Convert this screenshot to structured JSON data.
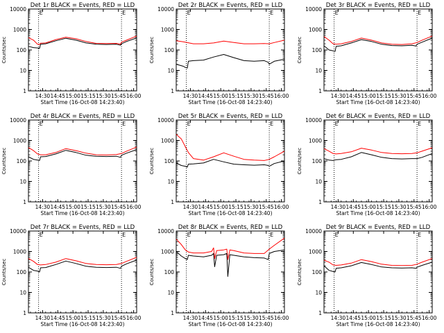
{
  "layout": {
    "rows": 3,
    "cols": 3
  },
  "colors": {
    "events": "#000000",
    "lld": "#ff0000",
    "axis": "#000000",
    "background": "#ffffff"
  },
  "chart_data": [
    {
      "type": "line",
      "title": "Det 1r BLACK = Events, RED = LLD",
      "xlabel": "Start Time (16-Oct-08 14:23:40)",
      "ylabel": "Counts/sec",
      "yscale": "log",
      "ylim": [
        1,
        10000
      ],
      "xlim_min": [
        -7,
        100
      ],
      "y_ticks": [
        1,
        10,
        100,
        1000,
        10000
      ],
      "y_tick_labels": [
        "1",
        "10",
        "100",
        "1000",
        "10000"
      ],
      "x_ticks": [
        7,
        22,
        37,
        52,
        67,
        82,
        97
      ],
      "x_tick_labels": [
        "14:30",
        "14:45",
        "15:00",
        "15:15",
        "15:30",
        "15:45",
        "16:00"
      ],
      "vlines": [
        3,
        85
      ],
      "marker": "E",
      "series": [
        {
          "x": [
            -7,
            -2,
            2,
            4,
            5,
            10,
            20,
            30,
            40,
            50,
            60,
            70,
            80,
            84,
            85,
            90,
            100
          ],
          "y": [
            400,
            300,
            190,
            185,
            215,
            220,
            320,
            420,
            350,
            260,
            210,
            205,
            210,
            190,
            240,
            300,
            480
          ],
          "color": "#ff0000"
        },
        {
          "x": [
            -7,
            -2,
            2,
            4,
            5,
            10,
            20,
            30,
            40,
            50,
            60,
            70,
            80,
            84,
            85,
            90,
            100
          ],
          "y": [
            150,
            130,
            125,
            120,
            190,
            200,
            280,
            370,
            300,
            220,
            190,
            185,
            190,
            170,
            200,
            260,
            390
          ],
          "color": "#000000"
        }
      ]
    },
    {
      "type": "line",
      "title": "Det 2r BLACK = Events, RED = LLD",
      "xlabel": "Start Time (16-Oct-08 14:23:40)",
      "ylabel": "Counts/sec",
      "yscale": "log",
      "ylim": [
        1,
        10000
      ],
      "xlim_min": [
        -7,
        100
      ],
      "y_ticks": [
        1,
        10,
        100,
        1000,
        10000
      ],
      "y_tick_labels": [
        "1",
        "10",
        "100",
        "1000",
        "10000"
      ],
      "x_ticks": [
        7,
        22,
        37,
        52,
        67,
        82,
        97
      ],
      "x_tick_labels": [
        "14:30",
        "14:45",
        "15:00",
        "15:15",
        "15:30",
        "15:45",
        "16:00"
      ],
      "vlines": [
        3,
        85
      ],
      "marker": "E",
      "series": [
        {
          "x": [
            -7,
            0,
            10,
            20,
            30,
            40,
            50,
            60,
            70,
            80,
            85,
            90,
            100
          ],
          "y": [
            280,
            250,
            200,
            200,
            220,
            270,
            230,
            200,
            200,
            205,
            200,
            230,
            300
          ],
          "color": "#ff0000"
        },
        {
          "x": [
            -7,
            0,
            2,
            4,
            5,
            10,
            20,
            30,
            40,
            50,
            60,
            70,
            80,
            84,
            85,
            90,
            100
          ],
          "y": [
            20,
            16,
            14,
            13,
            28,
            30,
            32,
            45,
            60,
            42,
            30,
            28,
            30,
            25,
            20,
            28,
            35
          ],
          "color": "#000000"
        }
      ]
    },
    {
      "type": "line",
      "title": "Det 3r BLACK = Events, RED = LLD",
      "xlabel": "Start Time (16-Oct-08 14:23:40)",
      "ylabel": "Counts/sec",
      "yscale": "log",
      "ylim": [
        1,
        10000
      ],
      "xlim_min": [
        -7,
        100
      ],
      "y_ticks": [
        1,
        10,
        100,
        1000,
        10000
      ],
      "y_tick_labels": [
        "1",
        "10",
        "100",
        "1000",
        "10000"
      ],
      "x_ticks": [
        7,
        22,
        37,
        52,
        67,
        82,
        97
      ],
      "x_tick_labels": [
        "14:30",
        "14:45",
        "15:00",
        "15:15",
        "15:30",
        "15:45",
        "16:00"
      ],
      "vlines": [
        3,
        85
      ],
      "marker": "E",
      "series": [
        {
          "x": [
            -7,
            -2,
            2,
            5,
            10,
            20,
            30,
            40,
            50,
            60,
            70,
            80,
            85,
            90,
            100
          ],
          "y": [
            450,
            300,
            200,
            190,
            200,
            260,
            380,
            300,
            220,
            190,
            185,
            200,
            230,
            300,
            480
          ],
          "color": "#ff0000"
        },
        {
          "x": [
            -7,
            -2,
            2,
            4,
            5,
            10,
            20,
            30,
            40,
            50,
            60,
            70,
            80,
            84,
            85,
            90,
            100
          ],
          "y": [
            160,
            100,
            90,
            85,
            150,
            160,
            220,
            320,
            260,
            190,
            165,
            160,
            170,
            155,
            190,
            240,
            380
          ],
          "color": "#000000"
        }
      ]
    },
    {
      "type": "line",
      "title": "Det 4r BLACK = Events, RED = LLD",
      "xlabel": "Start Time (16-Oct-08 14:23:40)",
      "ylabel": "Counts/sec",
      "yscale": "log",
      "ylim": [
        1,
        10000
      ],
      "xlim_min": [
        -7,
        100
      ],
      "y_ticks": [
        1,
        10,
        100,
        1000,
        10000
      ],
      "y_tick_labels": [
        "1",
        "10",
        "100",
        "1000",
        "10000"
      ],
      "x_ticks": [
        7,
        22,
        37,
        52,
        67,
        82,
        97
      ],
      "x_tick_labels": [
        "14:30",
        "14:45",
        "15:00",
        "15:15",
        "15:30",
        "15:45",
        "16:00"
      ],
      "vlines": [
        3,
        85
      ],
      "marker": "E",
      "series": [
        {
          "x": [
            -7,
            -2,
            2,
            5,
            10,
            20,
            30,
            40,
            50,
            60,
            70,
            80,
            85,
            90,
            100
          ],
          "y": [
            450,
            320,
            220,
            200,
            200,
            260,
            400,
            320,
            240,
            200,
            195,
            205,
            230,
            300,
            480
          ],
          "color": "#ff0000"
        },
        {
          "x": [
            -7,
            -2,
            2,
            4,
            5,
            10,
            20,
            30,
            40,
            50,
            60,
            70,
            80,
            84,
            85,
            90,
            100
          ],
          "y": [
            160,
            120,
            110,
            105,
            160,
            165,
            220,
            330,
            260,
            190,
            170,
            165,
            170,
            150,
            190,
            240,
            360
          ],
          "color": "#000000"
        }
      ]
    },
    {
      "type": "line",
      "title": "Det 5r BLACK = Events, RED = LLD",
      "xlabel": "Start Time (16-Oct-08 14:23:40)",
      "ylabel": "Counts/sec",
      "yscale": "log",
      "ylim": [
        1,
        10000
      ],
      "xlim_min": [
        -7,
        100
      ],
      "y_ticks": [
        1,
        10,
        100,
        1000,
        10000
      ],
      "y_tick_labels": [
        "1",
        "10",
        "100",
        "1000",
        "10000"
      ],
      "x_ticks": [
        7,
        22,
        37,
        52,
        67,
        82,
        97
      ],
      "x_tick_labels": [
        "14:30",
        "14:45",
        "15:00",
        "15:15",
        "15:30",
        "15:45",
        "16:00"
      ],
      "vlines": [
        3,
        85
      ],
      "marker": "E",
      "series": [
        {
          "x": [
            -7,
            -2,
            2,
            5,
            10,
            20,
            30,
            40,
            50,
            60,
            70,
            80,
            85,
            90,
            100
          ],
          "y": [
            2000,
            1200,
            500,
            260,
            130,
            110,
            160,
            250,
            170,
            120,
            110,
            105,
            120,
            160,
            300
          ],
          "color": "#ff0000"
        },
        {
          "x": [
            -7,
            -2,
            2,
            4,
            5,
            10,
            20,
            30,
            40,
            50,
            60,
            70,
            80,
            84,
            85,
            90,
            100
          ],
          "y": [
            80,
            60,
            55,
            50,
            70,
            72,
            80,
            120,
            90,
            70,
            65,
            62,
            65,
            60,
            55,
            75,
            100
          ],
          "color": "#000000"
        }
      ]
    },
    {
      "type": "line",
      "title": "Det 6r BLACK = Events, RED = LLD",
      "xlabel": "Start Time (16-Oct-08 14:23:40)",
      "ylabel": "Counts/sec",
      "yscale": "log",
      "ylim": [
        1,
        10000
      ],
      "xlim_min": [
        -7,
        100
      ],
      "y_ticks": [
        1,
        10,
        100,
        1000,
        10000
      ],
      "y_tick_labels": [
        "1",
        "10",
        "100",
        "1000",
        "10000"
      ],
      "x_ticks": [
        7,
        22,
        37,
        52,
        67,
        82,
        97
      ],
      "x_tick_labels": [
        "14:30",
        "14:45",
        "15:00",
        "15:15",
        "15:30",
        "15:45",
        "16:00"
      ],
      "vlines": [
        3,
        85
      ],
      "marker": "E",
      "series": [
        {
          "x": [
            -7,
            -2,
            2,
            5,
            10,
            20,
            30,
            40,
            50,
            60,
            70,
            80,
            85,
            90,
            100
          ],
          "y": [
            400,
            300,
            230,
            220,
            230,
            280,
            420,
            340,
            260,
            230,
            225,
            230,
            250,
            300,
            440
          ],
          "color": "#ff0000"
        },
        {
          "x": [
            -7,
            -2,
            2,
            5,
            10,
            20,
            30,
            40,
            50,
            60,
            70,
            80,
            85,
            90,
            100
          ],
          "y": [
            130,
            110,
            105,
            115,
            120,
            160,
            260,
            200,
            150,
            130,
            125,
            130,
            130,
            150,
            230
          ],
          "color": "#000000"
        }
      ]
    },
    {
      "type": "line",
      "title": "Det 7r BLACK = Events, RED = LLD",
      "xlabel": "Start Time (16-Oct-08 14:23:40)",
      "ylabel": "Counts/sec",
      "yscale": "log",
      "ylim": [
        1,
        10000
      ],
      "xlim_min": [
        -7,
        100
      ],
      "y_ticks": [
        1,
        10,
        100,
        1000,
        10000
      ],
      "y_tick_labels": [
        "1",
        "10",
        "100",
        "1000",
        "10000"
      ],
      "x_ticks": [
        7,
        22,
        37,
        52,
        67,
        82,
        97
      ],
      "x_tick_labels": [
        "14:30",
        "14:45",
        "15:00",
        "15:15",
        "15:30",
        "15:45",
        "16:00"
      ],
      "vlines": [
        3,
        85
      ],
      "marker": "E",
      "series": [
        {
          "x": [
            -7,
            -2,
            2,
            5,
            10,
            20,
            30,
            40,
            50,
            60,
            70,
            80,
            85,
            90,
            100
          ],
          "y": [
            450,
            330,
            230,
            220,
            230,
            300,
            450,
            350,
            260,
            230,
            225,
            230,
            260,
            330,
            520
          ],
          "color": "#ff0000"
        },
        {
          "x": [
            -7,
            -2,
            2,
            4,
            5,
            10,
            20,
            30,
            40,
            50,
            60,
            70,
            80,
            84,
            85,
            90,
            100
          ],
          "y": [
            170,
            120,
            110,
            100,
            160,
            165,
            230,
            340,
            260,
            190,
            170,
            165,
            170,
            150,
            190,
            250,
            380
          ],
          "color": "#000000"
        }
      ]
    },
    {
      "type": "line",
      "title": "Det 8r BLACK = Events, RED = LLD",
      "xlabel": "Start Time (16-Oct-08 14:23:40)",
      "ylabel": "Counts/sec",
      "yscale": "log",
      "ylim": [
        1,
        10000
      ],
      "xlim_min": [
        -7,
        100
      ],
      "y_ticks": [
        1,
        10,
        100,
        1000,
        10000
      ],
      "y_tick_labels": [
        "1",
        "10",
        "100",
        "1000",
        "10000"
      ],
      "x_ticks": [
        7,
        22,
        37,
        52,
        67,
        82,
        97
      ],
      "x_tick_labels": [
        "14:30",
        "14:45",
        "15:00",
        "15:15",
        "15:30",
        "15:45",
        "16:00"
      ],
      "vlines": [
        3,
        85
      ],
      "marker": "E",
      "series": [
        {
          "x": [
            -7,
            -2,
            2,
            5,
            10,
            20,
            28,
            30,
            31,
            33,
            40,
            43,
            44,
            46,
            50,
            60,
            70,
            80,
            85,
            90,
            100
          ],
          "y": [
            4000,
            2200,
            1200,
            950,
            850,
            850,
            1000,
            1500,
            450,
            1100,
            1200,
            1300,
            400,
            1200,
            1100,
            850,
            800,
            800,
            1300,
            2000,
            4500
          ],
          "color": "#ff0000"
        },
        {
          "x": [
            -7,
            -2,
            2,
            4,
            5,
            10,
            20,
            28,
            30,
            31,
            33,
            40,
            43,
            44,
            46,
            50,
            60,
            70,
            80,
            84,
            85,
            90,
            100
          ],
          "y": [
            1000,
            600,
            450,
            400,
            650,
            600,
            550,
            650,
            800,
            180,
            650,
            700,
            800,
            60,
            700,
            650,
            550,
            500,
            480,
            400,
            800,
            1000,
            1200
          ],
          "color": "#000000"
        }
      ]
    },
    {
      "type": "line",
      "title": "Det 9r BLACK = Events, RED = LLD",
      "xlabel": "Start Time (16-Oct-08 14:23:40)",
      "ylabel": "Counts/sec",
      "yscale": "log",
      "ylim": [
        1,
        10000
      ],
      "xlim_min": [
        -7,
        100
      ],
      "y_ticks": [
        1,
        10,
        100,
        1000,
        10000
      ],
      "y_tick_labels": [
        "1",
        "10",
        "100",
        "1000",
        "10000"
      ],
      "x_ticks": [
        7,
        22,
        37,
        52,
        67,
        82,
        97
      ],
      "x_tick_labels": [
        "14:30",
        "14:45",
        "15:00",
        "15:15",
        "15:30",
        "15:45",
        "16:00"
      ],
      "vlines": [
        3,
        85
      ],
      "marker": "E",
      "series": [
        {
          "x": [
            -7,
            -2,
            2,
            5,
            10,
            20,
            30,
            40,
            50,
            60,
            70,
            80,
            85,
            90,
            100
          ],
          "y": [
            380,
            300,
            220,
            210,
            220,
            270,
            400,
            320,
            240,
            210,
            205,
            210,
            240,
            300,
            450
          ],
          "color": "#ff0000"
        },
        {
          "x": [
            -7,
            -2,
            2,
            4,
            5,
            10,
            20,
            30,
            40,
            50,
            60,
            70,
            80,
            84,
            85,
            90,
            100
          ],
          "y": [
            200,
            120,
            105,
            100,
            150,
            160,
            200,
            290,
            230,
            175,
            160,
            155,
            160,
            150,
            170,
            210,
            300
          ],
          "color": "#000000"
        }
      ]
    }
  ]
}
